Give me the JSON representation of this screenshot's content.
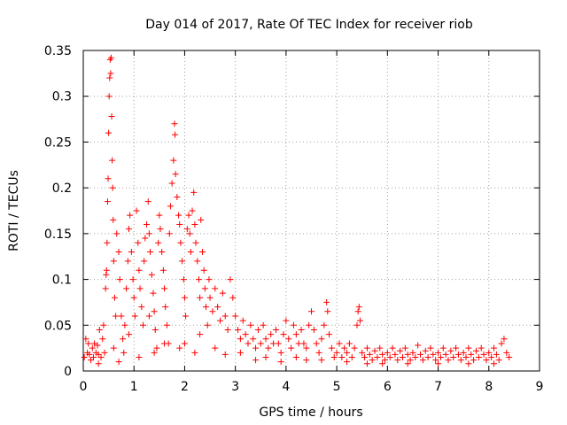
{
  "chart_data": {
    "type": "scatter",
    "title": "Day 014 of 2017, Rate Of TEC Index for receiver riob",
    "xlabel": "GPS time / hours",
    "ylabel": "ROTI / TECUs",
    "xlim": [
      0,
      9
    ],
    "ylim": [
      0,
      0.35
    ],
    "x_ticks": [
      "0",
      "1",
      "2",
      "3",
      "4",
      "5",
      "6",
      "7",
      "8",
      "9"
    ],
    "y_ticks": [
      "0",
      "0.05",
      "0.1",
      "0.15",
      "0.2",
      "0.25",
      "0.3",
      "0.35"
    ],
    "grid": true,
    "marker": "+",
    "series": [
      {
        "name": "ROTI",
        "color": "#ff0000",
        "points": [
          [
            0.02,
            0.015
          ],
          [
            0.05,
            0.035
          ],
          [
            0.08,
            0.02
          ],
          [
            0.1,
            0.03
          ],
          [
            0.12,
            0.018
          ],
          [
            0.15,
            0.012
          ],
          [
            0.18,
            0.025
          ],
          [
            0.2,
            0.015
          ],
          [
            0.22,
            0.03
          ],
          [
            0.25,
            0.02
          ],
          [
            0.28,
            0.028
          ],
          [
            0.3,
            0.018
          ],
          [
            0.32,
            0.045
          ],
          [
            0.35,
            0.015
          ],
          [
            0.38,
            0.035
          ],
          [
            0.4,
            0.05
          ],
          [
            0.42,
            0.02
          ],
          [
            0.44,
            0.09
          ],
          [
            0.45,
            0.105
          ],
          [
            0.46,
            0.11
          ],
          [
            0.47,
            0.14
          ],
          [
            0.48,
            0.185
          ],
          [
            0.49,
            0.21
          ],
          [
            0.5,
            0.26
          ],
          [
            0.51,
            0.3
          ],
          [
            0.52,
            0.32
          ],
          [
            0.53,
            0.34
          ],
          [
            0.54,
            0.325
          ],
          [
            0.55,
            0.342
          ],
          [
            0.56,
            0.278
          ],
          [
            0.57,
            0.23
          ],
          [
            0.58,
            0.2
          ],
          [
            0.59,
            0.165
          ],
          [
            0.6,
            0.12
          ],
          [
            0.62,
            0.08
          ],
          [
            0.64,
            0.06
          ],
          [
            0.66,
            0.15
          ],
          [
            0.7,
            0.13
          ],
          [
            0.72,
            0.1
          ],
          [
            0.75,
            0.06
          ],
          [
            0.78,
            0.035
          ],
          [
            0.8,
            0.02
          ],
          [
            0.82,
            0.05
          ],
          [
            0.85,
            0.09
          ],
          [
            0.88,
            0.12
          ],
          [
            0.9,
            0.155
          ],
          [
            0.92,
            0.17
          ],
          [
            0.95,
            0.13
          ],
          [
            0.98,
            0.1
          ],
          [
            1.0,
            0.08
          ],
          [
            1.02,
            0.06
          ],
          [
            1.05,
            0.175
          ],
          [
            1.08,
            0.14
          ],
          [
            1.1,
            0.11
          ],
          [
            1.12,
            0.09
          ],
          [
            1.15,
            0.07
          ],
          [
            1.18,
            0.05
          ],
          [
            1.2,
            0.12
          ],
          [
            1.22,
            0.145
          ],
          [
            1.25,
            0.16
          ],
          [
            1.28,
            0.185
          ],
          [
            1.3,
            0.15
          ],
          [
            1.32,
            0.13
          ],
          [
            1.35,
            0.105
          ],
          [
            1.38,
            0.085
          ],
          [
            1.4,
            0.065
          ],
          [
            1.42,
            0.045
          ],
          [
            1.45,
            0.025
          ],
          [
            1.48,
            0.14
          ],
          [
            1.5,
            0.17
          ],
          [
            1.52,
            0.155
          ],
          [
            1.55,
            0.13
          ],
          [
            1.58,
            0.11
          ],
          [
            1.6,
            0.09
          ],
          [
            1.62,
            0.07
          ],
          [
            1.65,
            0.05
          ],
          [
            1.68,
            0.03
          ],
          [
            1.7,
            0.15
          ],
          [
            1.72,
            0.18
          ],
          [
            1.75,
            0.205
          ],
          [
            1.78,
            0.23
          ],
          [
            1.8,
            0.27
          ],
          [
            1.81,
            0.258
          ],
          [
            1.82,
            0.215
          ],
          [
            1.85,
            0.19
          ],
          [
            1.88,
            0.17
          ],
          [
            1.9,
            0.16
          ],
          [
            1.92,
            0.14
          ],
          [
            1.95,
            0.12
          ],
          [
            1.98,
            0.1
          ],
          [
            2.0,
            0.08
          ],
          [
            2.02,
            0.06
          ],
          [
            2.05,
            0.155
          ],
          [
            2.08,
            0.17
          ],
          [
            2.1,
            0.15
          ],
          [
            2.12,
            0.13
          ],
          [
            2.15,
            0.175
          ],
          [
            2.18,
            0.195
          ],
          [
            2.2,
            0.16
          ],
          [
            2.22,
            0.14
          ],
          [
            2.25,
            0.12
          ],
          [
            2.28,
            0.1
          ],
          [
            2.3,
            0.08
          ],
          [
            2.32,
            0.165
          ],
          [
            2.35,
            0.13
          ],
          [
            2.38,
            0.11
          ],
          [
            2.4,
            0.09
          ],
          [
            2.42,
            0.07
          ],
          [
            2.45,
            0.05
          ],
          [
            2.48,
            0.1
          ],
          [
            2.5,
            0.08
          ],
          [
            2.55,
            0.065
          ],
          [
            2.6,
            0.09
          ],
          [
            2.65,
            0.07
          ],
          [
            2.7,
            0.055
          ],
          [
            2.75,
            0.085
          ],
          [
            2.8,
            0.06
          ],
          [
            2.85,
            0.045
          ],
          [
            2.9,
            0.1
          ],
          [
            2.95,
            0.08
          ],
          [
            3.0,
            0.06
          ],
          [
            3.05,
            0.045
          ],
          [
            3.1,
            0.035
          ],
          [
            3.15,
            0.055
          ],
          [
            3.2,
            0.04
          ],
          [
            3.25,
            0.03
          ],
          [
            3.3,
            0.05
          ],
          [
            3.35,
            0.035
          ],
          [
            3.4,
            0.025
          ],
          [
            3.45,
            0.045
          ],
          [
            3.5,
            0.03
          ],
          [
            3.55,
            0.05
          ],
          [
            3.6,
            0.035
          ],
          [
            3.65,
            0.025
          ],
          [
            3.7,
            0.04
          ],
          [
            3.75,
            0.03
          ],
          [
            3.8,
            0.045
          ],
          [
            3.85,
            0.03
          ],
          [
            3.9,
            0.02
          ],
          [
            3.95,
            0.04
          ],
          [
            4.0,
            0.055
          ],
          [
            4.05,
            0.035
          ],
          [
            4.1,
            0.025
          ],
          [
            4.15,
            0.05
          ],
          [
            4.2,
            0.04
          ],
          [
            4.25,
            0.03
          ],
          [
            4.3,
            0.045
          ],
          [
            4.35,
            0.03
          ],
          [
            4.4,
            0.025
          ],
          [
            4.45,
            0.05
          ],
          [
            4.5,
            0.065
          ],
          [
            4.55,
            0.045
          ],
          [
            4.6,
            0.03
          ],
          [
            4.65,
            0.02
          ],
          [
            4.7,
            0.035
          ],
          [
            4.75,
            0.05
          ],
          [
            4.8,
            0.075
          ],
          [
            4.82,
            0.065
          ],
          [
            4.85,
            0.04
          ],
          [
            4.9,
            0.025
          ],
          [
            4.95,
            0.015
          ],
          [
            5.0,
            0.02
          ],
          [
            5.05,
            0.03
          ],
          [
            5.1,
            0.015
          ],
          [
            5.15,
            0.025
          ],
          [
            5.2,
            0.02
          ],
          [
            5.25,
            0.03
          ],
          [
            5.3,
            0.015
          ],
          [
            5.35,
            0.025
          ],
          [
            5.4,
            0.05
          ],
          [
            5.42,
            0.065
          ],
          [
            5.44,
            0.07
          ],
          [
            5.46,
            0.055
          ],
          [
            5.5,
            0.02
          ],
          [
            5.55,
            0.015
          ],
          [
            5.6,
            0.025
          ],
          [
            5.65,
            0.018
          ],
          [
            5.7,
            0.012
          ],
          [
            5.75,
            0.022
          ],
          [
            5.8,
            0.015
          ],
          [
            5.85,
            0.025
          ],
          [
            5.9,
            0.018
          ],
          [
            5.95,
            0.012
          ],
          [
            6.0,
            0.02
          ],
          [
            6.05,
            0.015
          ],
          [
            6.1,
            0.025
          ],
          [
            6.15,
            0.018
          ],
          [
            6.2,
            0.012
          ],
          [
            6.25,
            0.022
          ],
          [
            6.3,
            0.015
          ],
          [
            6.35,
            0.025
          ],
          [
            6.4,
            0.018
          ],
          [
            6.45,
            0.012
          ],
          [
            6.5,
            0.02
          ],
          [
            6.55,
            0.015
          ],
          [
            6.6,
            0.028
          ],
          [
            6.65,
            0.018
          ],
          [
            6.7,
            0.012
          ],
          [
            6.75,
            0.022
          ],
          [
            6.8,
            0.015
          ],
          [
            6.85,
            0.025
          ],
          [
            6.9,
            0.018
          ],
          [
            6.95,
            0.012
          ],
          [
            7.0,
            0.02
          ],
          [
            7.05,
            0.015
          ],
          [
            7.1,
            0.025
          ],
          [
            7.15,
            0.018
          ],
          [
            7.2,
            0.012
          ],
          [
            7.25,
            0.022
          ],
          [
            7.3,
            0.015
          ],
          [
            7.35,
            0.025
          ],
          [
            7.4,
            0.018
          ],
          [
            7.45,
            0.012
          ],
          [
            7.5,
            0.02
          ],
          [
            7.55,
            0.015
          ],
          [
            7.6,
            0.025
          ],
          [
            7.65,
            0.018
          ],
          [
            7.7,
            0.012
          ],
          [
            7.75,
            0.022
          ],
          [
            7.8,
            0.015
          ],
          [
            7.85,
            0.025
          ],
          [
            7.9,
            0.018
          ],
          [
            7.95,
            0.012
          ],
          [
            8.0,
            0.02
          ],
          [
            8.05,
            0.015
          ],
          [
            8.1,
            0.025
          ],
          [
            8.15,
            0.018
          ],
          [
            8.2,
            0.012
          ],
          [
            8.25,
            0.03
          ],
          [
            8.3,
            0.035
          ],
          [
            8.35,
            0.02
          ],
          [
            8.4,
            0.015
          ],
          [
            0.6,
            0.025
          ],
          [
            0.9,
            0.04
          ],
          [
            1.3,
            0.06
          ],
          [
            1.6,
            0.03
          ],
          [
            2.0,
            0.03
          ],
          [
            2.3,
            0.04
          ],
          [
            2.6,
            0.025
          ],
          [
            3.1,
            0.02
          ],
          [
            3.6,
            0.015
          ],
          [
            4.2,
            0.015
          ],
          [
            4.7,
            0.012
          ],
          [
            5.2,
            0.01
          ],
          [
            5.9,
            0.008
          ],
          [
            6.4,
            0.008
          ],
          [
            7.0,
            0.008
          ],
          [
            7.6,
            0.008
          ],
          [
            8.1,
            0.008
          ],
          [
            0.3,
            0.008
          ],
          [
            0.7,
            0.01
          ],
          [
            1.1,
            0.015
          ],
          [
            1.4,
            0.02
          ],
          [
            1.9,
            0.025
          ],
          [
            2.2,
            0.02
          ],
          [
            2.8,
            0.018
          ],
          [
            3.4,
            0.012
          ],
          [
            3.9,
            0.01
          ],
          [
            4.4,
            0.012
          ],
          [
            5.6,
            0.008
          ]
        ]
      }
    ]
  }
}
